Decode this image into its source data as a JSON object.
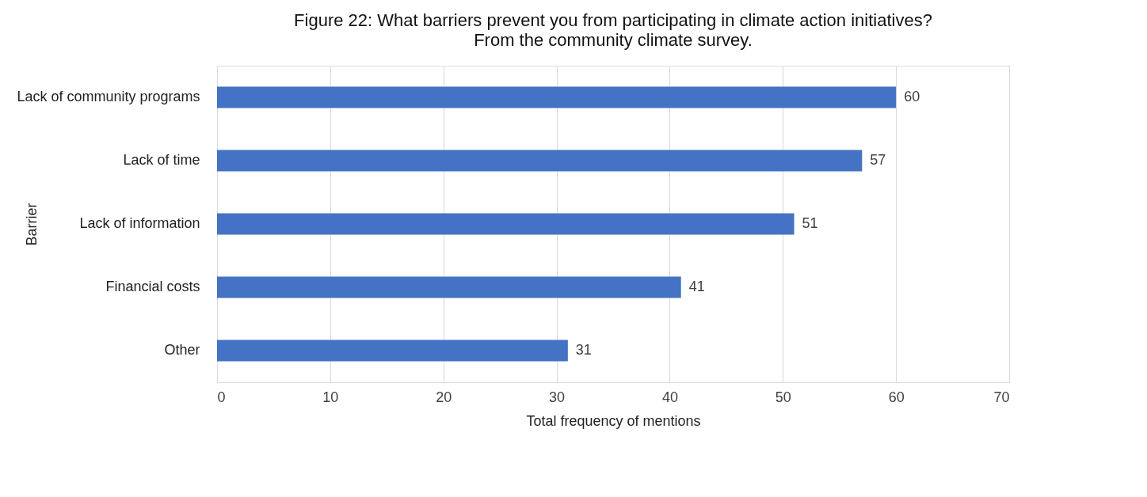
{
  "chart_data": {
    "type": "bar",
    "orientation": "horizontal",
    "title": "Figure 22: What barriers prevent you from participating in climate action initiatives?",
    "subtitle": "From the community climate survey.",
    "xlabel": "Total frequency of mentions",
    "ylabel": "Barrier",
    "categories": [
      "Lack of community programs",
      "Lack of time",
      "Lack of information",
      "Financial costs",
      "Other"
    ],
    "values": [
      60,
      57,
      51,
      41,
      31
    ],
    "color": "#4472c4",
    "data_labels": true,
    "xlim": [
      0,
      70
    ],
    "xticks": [
      0,
      10,
      20,
      30,
      40,
      50,
      60,
      70
    ],
    "grid": "x"
  }
}
